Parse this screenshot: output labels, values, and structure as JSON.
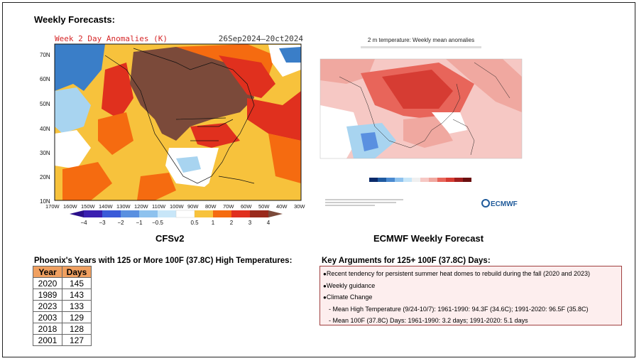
{
  "title": "Weekly Forecasts:",
  "cfs": {
    "map_title": "Week 2 Day Anomalies (K)",
    "date_range": "26Sep2024–20ct2024",
    "lat_labels": [
      "70N",
      "60N",
      "50N",
      "40N",
      "30N",
      "20N",
      "10N"
    ],
    "lon_labels": [
      "170W",
      "160W",
      "150W",
      "140W",
      "130W",
      "120W",
      "110W",
      "100W",
      "90W",
      "80W",
      "70W",
      "60W",
      "50W",
      "40W",
      "30W"
    ],
    "colorbar_labels": [
      "−4",
      "−3",
      "−2",
      "−1",
      "−0.5",
      "0.5",
      "1",
      "2",
      "3",
      "4"
    ],
    "caption": "CFSv2"
  },
  "ecmwf": {
    "map_title": "2 m temperature: Weekly mean anomalies",
    "caption": "ECMWF Weekly Forecast",
    "logo": "ECMWF"
  },
  "phoenix": {
    "title": "Phoenix's Years with 125 or More 100F (37.8C) High Temperatures:",
    "headers": [
      "Year",
      "Days"
    ],
    "rows": [
      [
        "2020",
        "145"
      ],
      [
        "1989",
        "143"
      ],
      [
        "2023",
        "133"
      ],
      [
        "2003",
        "129"
      ],
      [
        "2018",
        "128"
      ],
      [
        "2001",
        "127"
      ]
    ]
  },
  "key_arguments": {
    "title": "Key Arguments for 125+ 100F (37.8C) Days:",
    "items": [
      "Recent tendency for persistent summer heat domes to rebuild during the fall (2020 and 2023)",
      "Weekly guidance",
      "Climate Change"
    ],
    "sub_items": [
      "Mean High Temperature (9/24-10/7): 1961-1990: 94.3F (34.6C); 1991-2020: 96.5F (35.8C)",
      "Mean 100F (37.8C) Days: 1961-1990: 3.2 days; 1991-2020: 5.1 days"
    ]
  },
  "colors": {
    "brown": "#7b4a3a",
    "red": "#e0301e",
    "orange": "#f56b10",
    "yellow": "#f7c23c",
    "light_blue": "#a8d4f0",
    "blue": "#3a7ec8"
  }
}
